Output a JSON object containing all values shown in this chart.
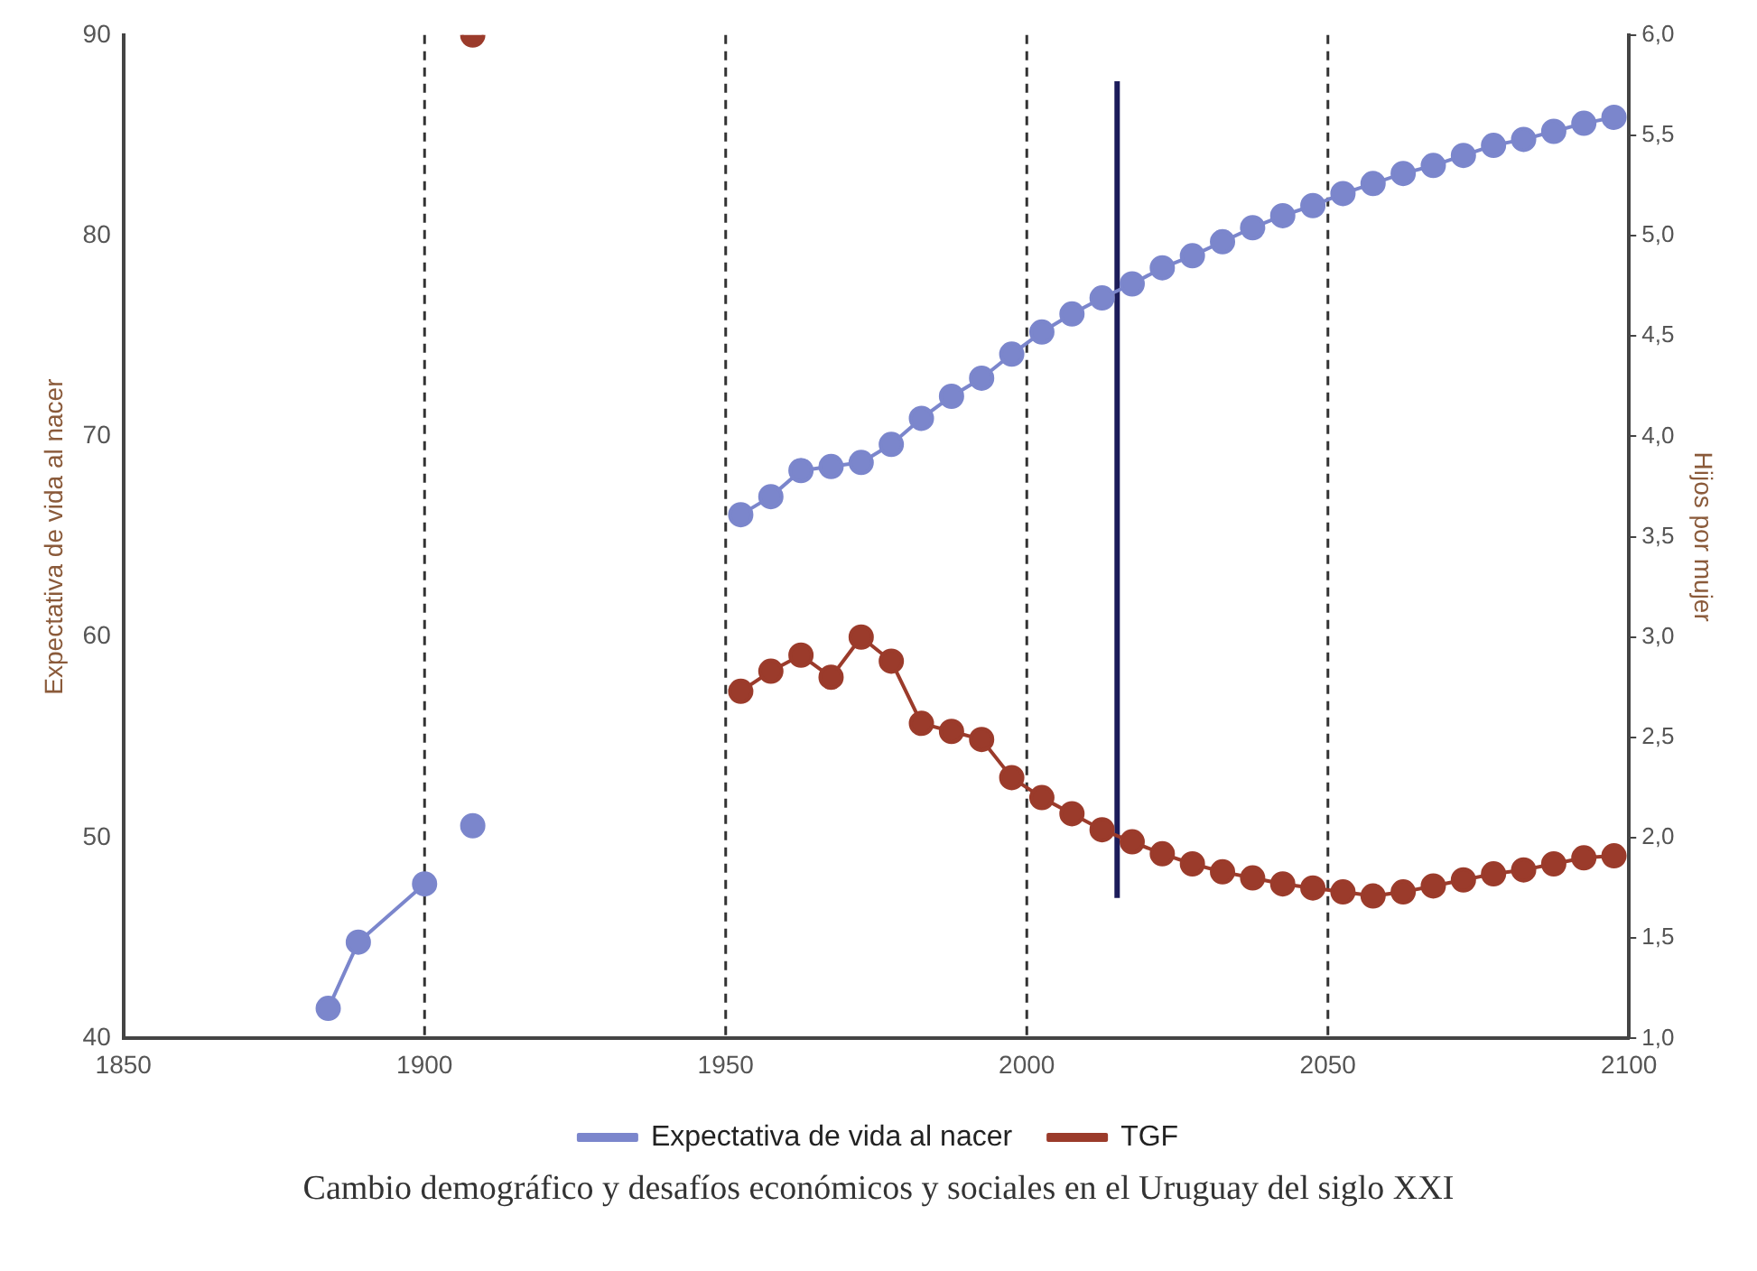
{
  "chart_data": {
    "type": "line",
    "ylabel": "Expectativa de vida al nacer",
    "y2label": "Hijos por mujer",
    "xlim": [
      1850,
      2100
    ],
    "xticks": [
      1850,
      1900,
      1950,
      2000,
      2050,
      2100
    ],
    "ylim": [
      40,
      90
    ],
    "yticks": [
      40,
      50,
      60,
      70,
      80,
      90
    ],
    "y2lim": [
      1,
      6
    ],
    "y2ticks": [
      {
        "value": 1,
        "label": "1,0"
      },
      {
        "value": 1.5,
        "label": "1,5"
      },
      {
        "value": 2,
        "label": "2,0"
      },
      {
        "value": 2.5,
        "label": "2,5"
      },
      {
        "value": 3,
        "label": "3,0"
      },
      {
        "value": 3.5,
        "label": "3,5"
      },
      {
        "value": 4,
        "label": "4,0"
      },
      {
        "value": 4.5,
        "label": "4,5"
      },
      {
        "value": 5,
        "label": "5,0"
      },
      {
        "value": 5.5,
        "label": "5,5"
      },
      {
        "value": 6,
        "label": "6,0"
      }
    ],
    "grid": false,
    "legend": "bottom",
    "marker": "circle",
    "line_style": "solid",
    "series": [
      {
        "name": "Expectativa de vida al nacer",
        "color": "#7b86cc",
        "x": [
          1884,
          1889,
          1900,
          1904,
          1908,
          1930,
          1952.5,
          1957.5,
          1962.5,
          1967.5,
          1972.5,
          1977.5,
          1982.5,
          1987.5,
          1992.5,
          1997.5,
          2002.5,
          2007.5,
          2012.5,
          2017.5,
          2022.5,
          2027.5,
          2032.5,
          2037.5,
          2042.5,
          2047.5,
          2052.5,
          2057.5,
          2062.5,
          2067.5,
          2072.5,
          2077.5,
          2082.5,
          2087.5,
          2092.5,
          2097.5
        ],
        "values": [
          41.5,
          44.8,
          47.7,
          null,
          50.6,
          null,
          66.1,
          67.0,
          68.3,
          68.5,
          68.7,
          69.6,
          70.9,
          72.0,
          72.9,
          74.1,
          75.2,
          76.1,
          76.9,
          77.6,
          78.4,
          79.0,
          79.7,
          80.4,
          81.0,
          81.5,
          82.1,
          82.6,
          83.1,
          83.5,
          84.0,
          84.5,
          84.8,
          85.2,
          85.6,
          85.9
        ]
      },
      {
        "name": "TGF",
        "color": "#9b3b2b",
        "axis": "y2",
        "x": [
          1908,
          1930,
          1952.5,
          1957.5,
          1962.5,
          1967.5,
          1972.5,
          1977.5,
          1982.5,
          1987.5,
          1992.5,
          1997.5,
          2002.5,
          2007.5,
          2012.5,
          2017.5,
          2022.5,
          2027.5,
          2032.5,
          2037.5,
          2042.5,
          2047.5,
          2052.5,
          2057.5,
          2062.5,
          2067.5,
          2072.5,
          2077.5,
          2082.5,
          2087.5,
          2092.5,
          2097.5
        ],
        "values": [
          6.0,
          null,
          2.73,
          2.83,
          2.91,
          2.8,
          3.0,
          2.88,
          2.57,
          2.53,
          2.49,
          2.3,
          2.2,
          2.12,
          2.04,
          1.98,
          1.92,
          1.87,
          1.83,
          1.8,
          1.77,
          1.75,
          1.73,
          1.71,
          1.73,
          1.76,
          1.79,
          1.82,
          1.84,
          1.87,
          1.9,
          1.91
        ]
      },
      {
        "type": "line",
        "color": "#1c1c5a",
        "marker": "none",
        "x": [
          2015,
          2015
        ],
        "values": [
          47,
          87.7
        ]
      }
    ],
    "ref_lines": [
      {
        "axis": "x",
        "value": 1900,
        "color": "#333333",
        "line_style": "dashed"
      },
      {
        "axis": "x",
        "value": 1950,
        "color": "#333333",
        "line_style": "dashed"
      },
      {
        "axis": "x",
        "value": 2000,
        "color": "#333333",
        "line_style": "dashed"
      },
      {
        "axis": "x",
        "value": 2050,
        "color": "#333333",
        "line_style": "dashed"
      }
    ],
    "annotations": [
      "Cambio demográfico y desafíos económicos y sociales en el Uruguay del siglo XXI"
    ]
  }
}
